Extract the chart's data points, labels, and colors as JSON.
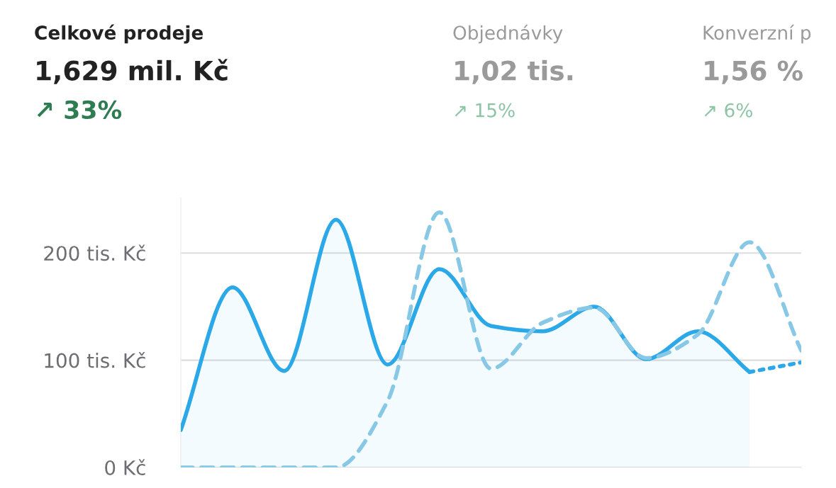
{
  "chart_data": {
    "type": "line",
    "categories": [
      null,
      null,
      null,
      null,
      null,
      null,
      null,
      null,
      null,
      null,
      null,
      null,
      null
    ],
    "series": [
      {
        "type": "area",
        "color": "#2aa8e8",
        "line_style": "solid",
        "values": [
          35,
          168,
          90,
          231,
          96,
          185,
          132,
          127,
          150,
          101,
          127,
          89,
          null
        ]
      },
      {
        "color": "#2aa8e8",
        "line_style": "dotted",
        "values": [
          null,
          null,
          null,
          null,
          null,
          null,
          null,
          null,
          null,
          null,
          null,
          89,
          98
        ]
      },
      {
        "color": "#86c8e6",
        "line_style": "dashed",
        "values": [
          0,
          0,
          0,
          0,
          62,
          238,
          92,
          135,
          149,
          102,
          124,
          210,
          109
        ]
      }
    ],
    "ylim": [
      0,
      251
    ],
    "yticks": [
      {
        "value": 0,
        "label": "0 Kč"
      },
      {
        "value": 100,
        "label": "100 tis. Kč"
      },
      {
        "value": 200,
        "label": "200 tis. Kč"
      }
    ],
    "grid": "y",
    "tick_labels": "y",
    "annotations": [
      "Celkové prodeje",
      "1,629 mil. Kč",
      "↗ 33%",
      "Objednávky",
      "1,02 tis.",
      "↗ 15%",
      "Konverzní p",
      "1,56 %",
      "↗ 6%"
    ]
  }
}
